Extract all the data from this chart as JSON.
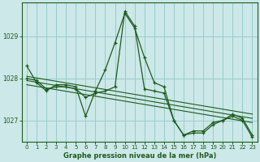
{
  "title": "Graphe pression niveau de la mer (hPa)",
  "background_color": "#cce8e8",
  "grid_color": "#99cccc",
  "line_color": "#1e5c1e",
  "xlim": [
    -0.5,
    23.5
  ],
  "ylim": [
    1026.5,
    1029.8
  ],
  "yticks": [
    1027,
    1028,
    1029
  ],
  "xticks": [
    0,
    1,
    2,
    3,
    4,
    5,
    6,
    7,
    8,
    9,
    10,
    11,
    12,
    13,
    14,
    15,
    16,
    17,
    18,
    19,
    20,
    21,
    22,
    23
  ],
  "series_main": [
    1028.3,
    1027.9,
    1027.7,
    1027.85,
    1027.85,
    1027.8,
    1027.1,
    1027.7,
    1028.2,
    1028.85,
    1029.55,
    1029.2,
    1028.5,
    1027.9,
    1027.8,
    1027.0,
    1026.65,
    1026.75,
    1026.75,
    1026.95,
    1027.0,
    1027.15,
    1027.05,
    1026.65
  ],
  "trend1": {
    "x": [
      0,
      23
    ],
    "y": [
      1028.05,
      1027.15
    ]
  },
  "trend2": {
    "x": [
      0,
      23
    ],
    "y": [
      1027.95,
      1027.05
    ]
  },
  "trend3": {
    "x": [
      0,
      23
    ],
    "y": [
      1027.85,
      1026.95
    ]
  },
  "series2_x": [
    0,
    1,
    2,
    3,
    4,
    5,
    6,
    7,
    8,
    9,
    10,
    11,
    12,
    13,
    14,
    15,
    16,
    17,
    18,
    19,
    20,
    21,
    22,
    23
  ],
  "series2_y": [
    1028.0,
    1027.95,
    1027.75,
    1027.8,
    1027.8,
    1027.75,
    1027.55,
    1027.65,
    1027.7,
    1027.8,
    1029.6,
    1029.25,
    1027.75,
    1027.7,
    1027.65,
    1027.0,
    1026.65,
    1026.7,
    1026.7,
    1026.9,
    1027.0,
    1027.1,
    1027.0,
    1026.6
  ],
  "title_fontsize": 6.0,
  "tick_fontsize": 5.0
}
